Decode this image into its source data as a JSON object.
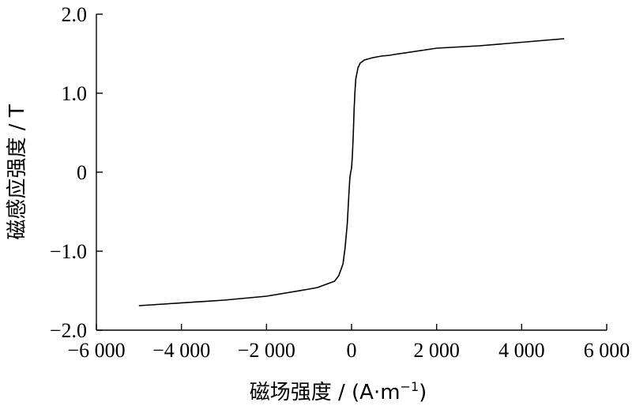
{
  "chart_data": {
    "type": "line",
    "title": "",
    "xlabel": "磁场强度 / (A·m⁻¹)",
    "xlabel_parts": {
      "main": "磁场强度 / (A·m",
      "sup": "−1",
      "close": ")"
    },
    "ylabel": "磁感应强度 / T",
    "xlim": [
      -6000,
      6000
    ],
    "ylim": [
      -2.0,
      2.0
    ],
    "x_ticks": [
      -6000,
      -4000,
      -2000,
      0,
      2000,
      4000,
      6000
    ],
    "x_tick_labels": [
      "−6 000",
      "−4 000",
      "−2 000",
      "0",
      "2 000",
      "4 000",
      "6 000"
    ],
    "y_ticks": [
      -2.0,
      -1.0,
      0,
      1.0,
      2.0
    ],
    "y_tick_labels": [
      "−2.0",
      "−1.0",
      "0",
      "1.0",
      "2.0"
    ],
    "grid": false,
    "legend": "none",
    "series": [
      {
        "x": [
          -5000,
          -3000,
          -2000,
          -1000,
          -800,
          -600,
          -400,
          -300,
          -200,
          -150,
          -100,
          -80,
          -60,
          -40,
          -20,
          0,
          20,
          40,
          60,
          80,
          100,
          150,
          200,
          300,
          500,
          700,
          900,
          1000,
          2000,
          3000,
          5000
        ],
        "y": [
          -1.69,
          -1.62,
          -1.57,
          -1.48,
          -1.46,
          -1.42,
          -1.38,
          -1.31,
          -1.16,
          -0.95,
          -0.65,
          -0.45,
          -0.25,
          -0.08,
          0.0,
          0.05,
          0.22,
          0.48,
          0.78,
          1.02,
          1.18,
          1.32,
          1.38,
          1.42,
          1.45,
          1.47,
          1.48,
          1.49,
          1.57,
          1.6,
          1.69
        ]
      }
    ]
  }
}
